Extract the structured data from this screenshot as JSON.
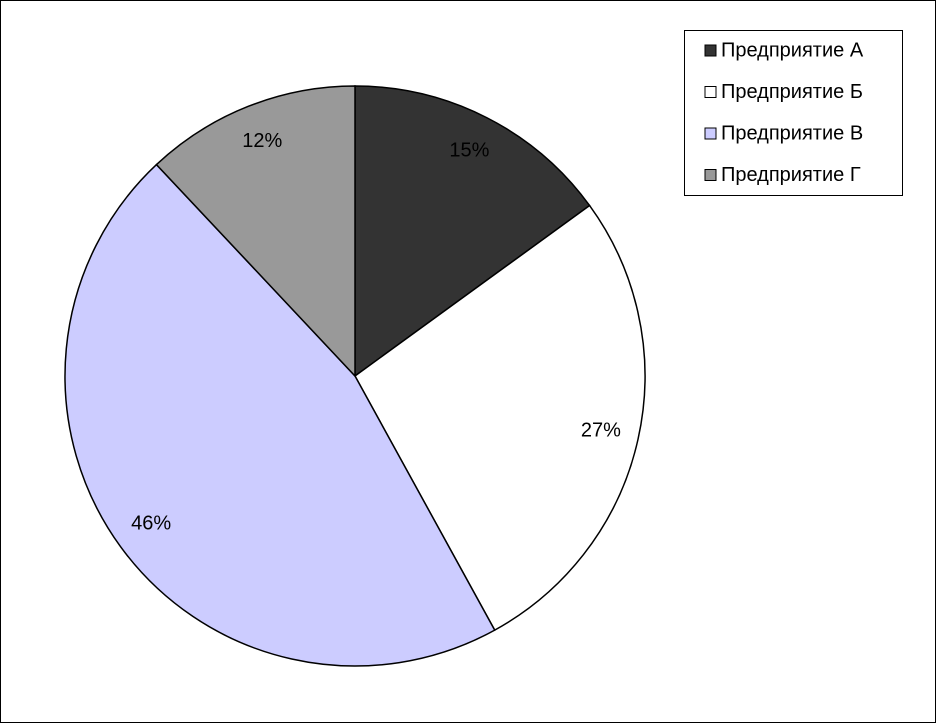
{
  "chart_data": {
    "type": "pie",
    "categories": [
      "Предприятие А",
      "Предприятие Б",
      "Предприятие В",
      "Предприятие Г"
    ],
    "values": [
      15,
      27,
      46,
      12
    ],
    "value_labels": [
      "15%",
      "27%",
      "46%",
      "12%"
    ],
    "colors": [
      "#333333",
      "#ffffff",
      "#ccccff",
      "#999999"
    ],
    "legend": "top-right"
  }
}
